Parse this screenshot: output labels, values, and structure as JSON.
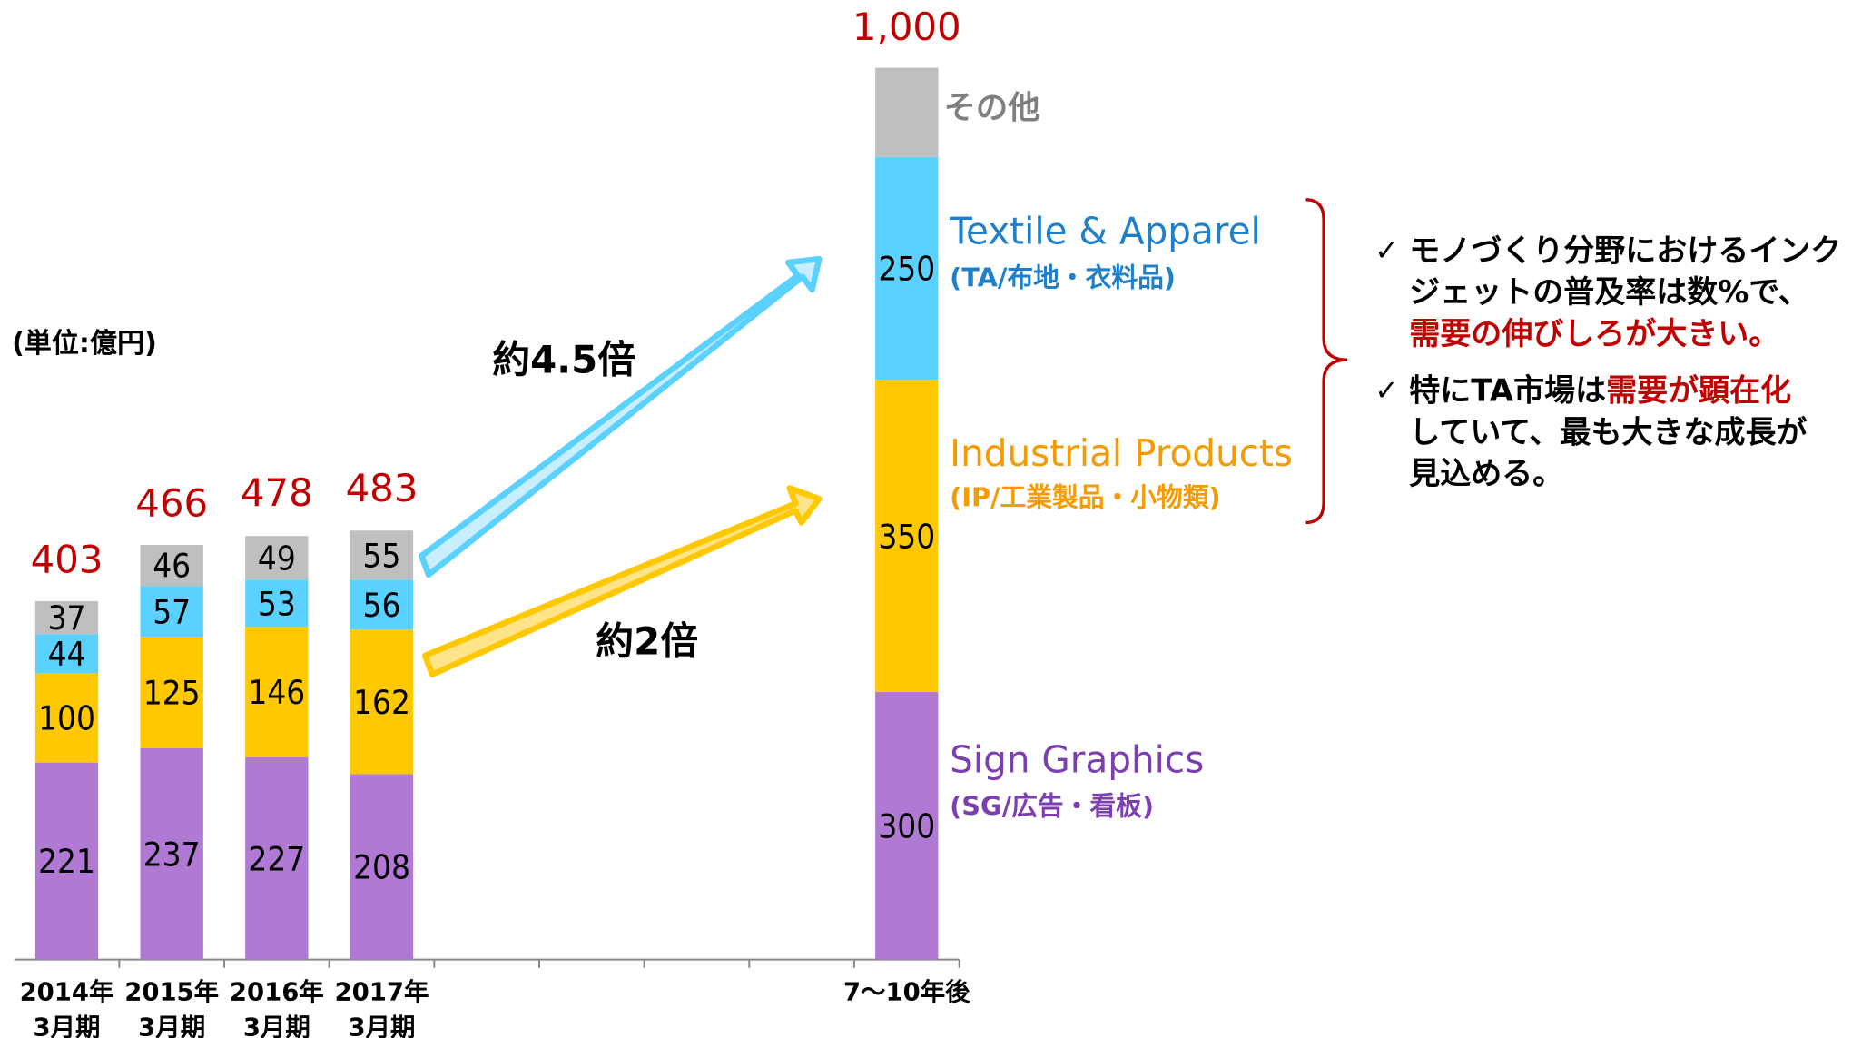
{
  "chart_data": {
    "type": "stacked_bar",
    "unit_note": "(単位:億円)",
    "categories": [
      [
        "2014年",
        "3月期"
      ],
      [
        "2015年",
        "3月期"
      ],
      [
        "2016年",
        "3月期"
      ],
      [
        "2017年",
        "3月期"
      ],
      null,
      null,
      null,
      null,
      [
        "7〜10年後"
      ]
    ],
    "ylim": [
      0,
      1000
    ],
    "series": [
      {
        "name": "Sign Graphics",
        "sublabel": "(SG/広告・看板)",
        "color": "#b07ad4",
        "text_color": "#7b3fb0",
        "values": [
          221,
          237,
          227,
          208,
          null,
          null,
          null,
          null,
          300
        ]
      },
      {
        "name": "Industrial Products",
        "sublabel": "(IP/工業製品・小物類)",
        "color": "#ffc800",
        "text_color": "#f59a00",
        "values": [
          100,
          125,
          146,
          162,
          null,
          null,
          null,
          null,
          350
        ]
      },
      {
        "name": "Textile & Apparel",
        "sublabel": "(TA/布地・衣料品)",
        "color": "#5bd1ff",
        "text_color": "#1f7fc8",
        "values": [
          44,
          57,
          53,
          56,
          null,
          null,
          null,
          null,
          250
        ]
      },
      {
        "name": "その他",
        "color": "#bfbfbf",
        "text_color": "#7f7f7f",
        "values": [
          37,
          46,
          49,
          55,
          null,
          null,
          null,
          null,
          100
        ],
        "value_labels": [
          "37",
          "46",
          "49",
          "55",
          null,
          null,
          null,
          null,
          null
        ]
      }
    ],
    "totals": [
      403,
      466,
      478,
      483,
      null,
      null,
      null,
      null,
      1000
    ],
    "total_labels": [
      "403",
      "466",
      "478",
      "483",
      null,
      null,
      null,
      null,
      "1,000"
    ],
    "annotations": [
      "約4.5倍",
      "約2倍"
    ],
    "notes": [
      [
        [
          {
            "text": "モノづくり分野におけるインク"
          }
        ],
        [
          {
            "text": "ジェットの普及率は数%で、"
          }
        ],
        [
          {
            "text": "需要の伸びしろが大きい。",
            "highlight": true
          }
        ]
      ],
      [
        [
          {
            "text": "特にTA市場は"
          },
          {
            "text": "需要が顕在化",
            "highlight": true
          }
        ],
        [
          {
            "text": "していて、最も大きな成長が"
          }
        ],
        [
          {
            "text": "見込める。"
          }
        ]
      ]
    ]
  }
}
